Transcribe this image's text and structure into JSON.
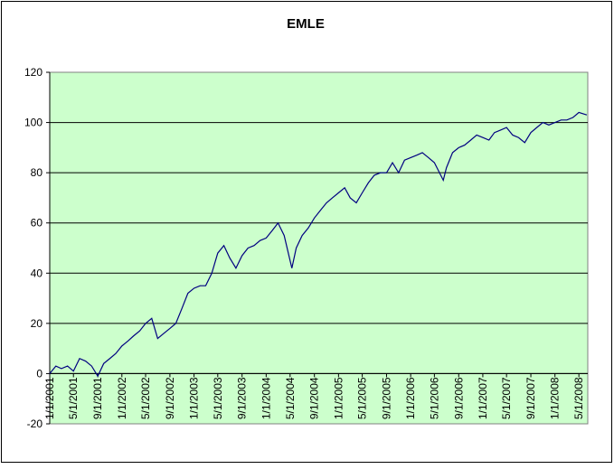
{
  "chart_data": {
    "type": "line",
    "title": "EMLE",
    "x": [
      "1/1/2001",
      "2/1/2001",
      "3/1/2001",
      "4/1/2001",
      "5/1/2001",
      "6/1/2001",
      "7/1/2001",
      "8/1/2001",
      "9/1/2001",
      "10/1/2001",
      "11/1/2001",
      "12/1/2001",
      "1/1/2002",
      "2/1/2002",
      "3/1/2002",
      "4/1/2002",
      "5/1/2002",
      "6/1/2002",
      "7/1/2002",
      "8/1/2002",
      "9/1/2002",
      "10/1/2002",
      "11/1/2002",
      "12/1/2002",
      "1/1/2003",
      "2/1/2003",
      "3/1/2003",
      "4/1/2003",
      "5/1/2003",
      "6/1/2003",
      "7/1/2003",
      "8/1/2003",
      "9/1/2003",
      "10/1/2003",
      "11/1/2003",
      "12/1/2003",
      "1/1/2004",
      "2/1/2004",
      "3/1/2004",
      "4/1/2004",
      "5/10/2004",
      "6/1/2004",
      "7/1/2004",
      "8/1/2004",
      "9/1/2004",
      "10/1/2004",
      "11/1/2004",
      "12/1/2004",
      "1/1/2005",
      "2/1/2005",
      "3/1/2005",
      "4/1/2005",
      "5/1/2005",
      "6/1/2005",
      "7/1/2005",
      "8/1/2005",
      "9/1/2005",
      "10/1/2005",
      "11/1/2005",
      "12/1/2005",
      "1/1/2006",
      "2/1/2006",
      "3/1/2006",
      "4/1/2006",
      "5/1/2006",
      "6/15/2006",
      "7/1/2006",
      "8/1/2006",
      "9/1/2006",
      "10/1/2006",
      "11/1/2006",
      "12/1/2006",
      "1/1/2007",
      "2/1/2007",
      "3/1/2007",
      "4/1/2007",
      "5/1/2007",
      "6/1/2007",
      "7/1/2007",
      "8/1/2007",
      "9/1/2007",
      "10/1/2007",
      "11/1/2007",
      "12/1/2007",
      "1/1/2008",
      "2/1/2008",
      "3/1/2008",
      "4/1/2008",
      "5/1/2008",
      "6/10/2008"
    ],
    "series": [
      {
        "name": "EMLE",
        "color": "#000080",
        "values": [
          0,
          3,
          2,
          3,
          1,
          6,
          5,
          3,
          -1,
          4,
          6,
          8,
          11,
          13,
          15,
          17,
          20,
          22,
          14,
          16,
          18,
          20,
          26,
          32,
          34,
          35,
          35,
          40,
          48,
          51,
          46,
          42,
          47,
          50,
          51,
          53,
          54,
          57,
          60,
          55,
          42,
          50,
          55,
          58,
          62,
          65,
          68,
          70,
          72,
          74,
          70,
          68,
          72,
          76,
          79,
          80,
          80,
          84,
          80,
          85,
          86,
          87,
          88,
          86,
          84,
          77,
          82,
          88,
          90,
          91,
          93,
          95,
          94,
          93,
          96,
          97,
          98,
          95,
          94,
          92,
          96,
          98,
          100,
          99,
          100,
          101,
          101,
          102,
          104,
          103
        ]
      }
    ],
    "xlim": [
      "1/1/2001",
      "6/15/2008"
    ],
    "xticks": [
      "1/1/2001",
      "5/1/2001",
      "9/1/2001",
      "1/1/2002",
      "5/1/2002",
      "9/1/2002",
      "1/1/2003",
      "5/1/2003",
      "9/1/2003",
      "1/1/2004",
      "5/1/2004",
      "9/1/2004",
      "1/1/2005",
      "5/1/2005",
      "9/1/2005",
      "1/1/2006",
      "5/1/2006",
      "9/1/2006",
      "1/1/2007",
      "5/1/2007",
      "9/1/2007",
      "1/1/2008",
      "5/1/2008"
    ],
    "ylim": [
      -20,
      120
    ],
    "yticks": [
      -20,
      0,
      20,
      40,
      60,
      80,
      100,
      120
    ],
    "grid": true,
    "background": "#ccffcc"
  }
}
